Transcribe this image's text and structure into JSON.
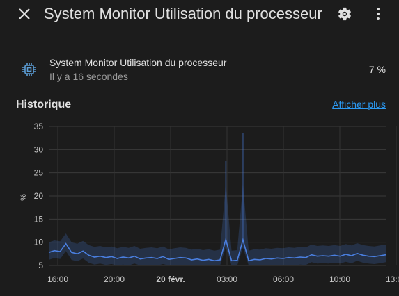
{
  "header": {
    "title": "System Monitor Utilisation du processeur",
    "close_icon": "close-icon",
    "settings_icon": "gear-icon",
    "menu_icon": "dots-vertical-icon"
  },
  "entity": {
    "icon": "cpu-chip-icon",
    "name": "System Monitor Utilisation du processeur",
    "last_changed": "Il y a 16 secondes",
    "value": "7 %"
  },
  "history": {
    "title": "Historique",
    "more_link": "Afficher plus"
  },
  "colors": {
    "background": "#1c1c1c",
    "accent": "#2b9af3",
    "line": "#4a7fe0"
  },
  "chart_data": {
    "type": "line",
    "ylabel": "%",
    "ylim": [
      5,
      35
    ],
    "y_ticks": [
      "5",
      "10",
      "15",
      "20",
      "25",
      "30",
      "35"
    ],
    "x_ticks": [
      "16:00",
      "20:00",
      "20 févr.",
      "03:00",
      "06:00",
      "10:00",
      "13:00"
    ],
    "grid": true,
    "series": [
      {
        "values": [
          7.8,
          8.2,
          8.0,
          9.7,
          7.8,
          7.5,
          8.1,
          7.2,
          6.8,
          7.0,
          6.7,
          6.9,
          6.5,
          6.8,
          6.6,
          7.0,
          6.4,
          6.6,
          6.7,
          6.5,
          6.9,
          6.3,
          6.5,
          6.7,
          6.6,
          6.2,
          6.4,
          6.1,
          6.3,
          6.0,
          6.2,
          10.6,
          6.0,
          6.1,
          10.5,
          6.0,
          6.3,
          6.2,
          6.5,
          6.4,
          6.6,
          6.5,
          6.7,
          6.6,
          6.8,
          6.7,
          7.3,
          7.0,
          7.1,
          7.0,
          7.2,
          7.0,
          7.4,
          7.1,
          7.6,
          7.2,
          7.0,
          6.9,
          7.1,
          7.3
        ]
      }
    ]
  }
}
